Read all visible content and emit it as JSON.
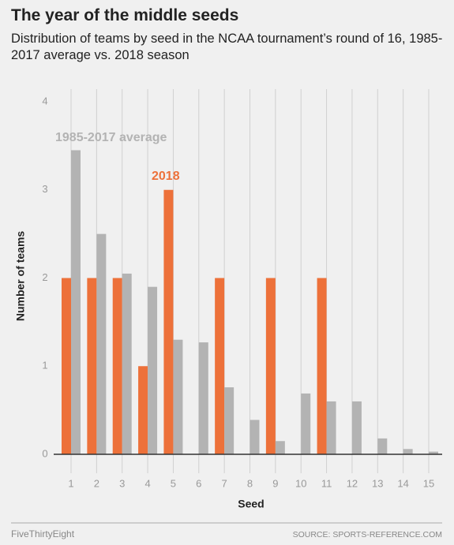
{
  "chart_data": {
    "type": "bar",
    "title": "The year of the middle seeds",
    "subtitle": "Distribution of teams by seed in the NCAA tournament’s round of 16, 1985-2017 average vs. 2018 season",
    "x_label": "Seed",
    "y_label": "Number of teams",
    "categories": [
      "1",
      "2",
      "3",
      "4",
      "5",
      "6",
      "7",
      "8",
      "9",
      "10",
      "11",
      "12",
      "13",
      "14",
      "15"
    ],
    "series": [
      {
        "name": "2018",
        "color": "#ed713a",
        "values": [
          2,
          2,
          2,
          1,
          3,
          0,
          2,
          0,
          2,
          0,
          2,
          0,
          0,
          0,
          0
        ]
      },
      {
        "name": "1985-2017 average",
        "color": "#b3b3b3",
        "values": [
          3.45,
          2.5,
          2.05,
          1.9,
          1.3,
          1.27,
          0.76,
          0.39,
          0.15,
          0.69,
          0.6,
          0.6,
          0.18,
          0.06,
          0.03
        ]
      }
    ],
    "ylim": [
      0,
      4
    ],
    "yticks": [
      0,
      1,
      2,
      3,
      4
    ],
    "grid": true
  },
  "footer": {
    "brand": "FiveThirtyEight",
    "source": "SOURCE: SPORTS-REFERENCE.COM"
  }
}
